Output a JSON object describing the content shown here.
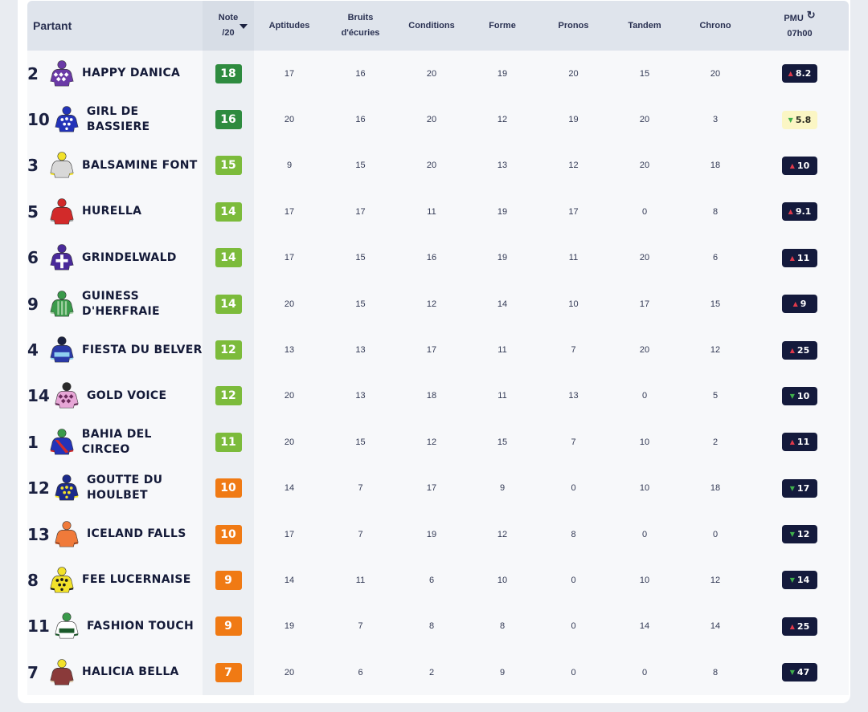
{
  "header": {
    "partant": "Partant",
    "note_line1": "Note",
    "note_line2": "/20",
    "aptitudes": "Aptitudes",
    "bruits_line1": "Bruits",
    "bruits_line2": "d'écuries",
    "conditions": "Conditions",
    "forme": "Forme",
    "pronos": "Pronos",
    "tandem": "Tandem",
    "chrono": "Chrono",
    "pmu_line1": "PMU",
    "pmu_line2": "07h00"
  },
  "colors": {
    "note_dark_green": "#2e8b3f",
    "note_light_green": "#7cbb3b",
    "note_orange": "#f07a14",
    "odds_dark": "#141a3c",
    "odds_light": "#fbf6c4",
    "up_arrow": "#e0394a",
    "down_arrow": "#3fb04b"
  },
  "icons": {
    "sort": "sort-desc-icon",
    "refresh": "refresh-icon",
    "up": "trend-up-icon",
    "down": "trend-down-icon"
  },
  "runners": [
    {
      "num": "2",
      "name": [
        "HAPPY DANICA"
      ],
      "note": "18",
      "note_color": "#2e8b3f",
      "aptitudes": "17",
      "bruits": "16",
      "conditions": "20",
      "forme": "19",
      "pronos": "20",
      "tandem": "15",
      "chrono": "20",
      "pmu": "8.2",
      "trend": "up",
      "odds_style": "dark",
      "silk": {
        "body": "#6a3aa6",
        "accent": "#ffffff",
        "cap": "#6a3aa6",
        "pattern": "diamonds"
      }
    },
    {
      "num": "10",
      "name": [
        "GIRL DE BASSIERE"
      ],
      "note": "16",
      "note_color": "#2e8b3f",
      "aptitudes": "20",
      "bruits": "16",
      "conditions": "20",
      "forme": "12",
      "pronos": "19",
      "tandem": "20",
      "chrono": "3",
      "pmu": "5.8",
      "trend": "down",
      "odds_style": "light",
      "silk": {
        "body": "#2333b8",
        "accent": "#ffffff",
        "cap": "#2333b8",
        "pattern": "spots"
      }
    },
    {
      "num": "3",
      "name": [
        "BALSAMINE FONT"
      ],
      "note": "15",
      "note_color": "#7cbb3b",
      "aptitudes": "9",
      "bruits": "15",
      "conditions": "20",
      "forme": "13",
      "pronos": "12",
      "tandem": "20",
      "chrono": "18",
      "pmu": "10",
      "trend": "up",
      "odds_style": "dark",
      "silk": {
        "body": "#d8d8d8",
        "accent": "#f2e22a",
        "cap": "#f2e22a",
        "pattern": "plain"
      }
    },
    {
      "num": "5",
      "name": [
        "HURELLA"
      ],
      "note": "14",
      "note_color": "#7cbb3b",
      "aptitudes": "17",
      "bruits": "17",
      "conditions": "11",
      "forme": "19",
      "pronos": "17",
      "tandem": "0",
      "chrono": "8",
      "pmu": "9.1",
      "trend": "up",
      "odds_style": "dark",
      "silk": {
        "body": "#d22a2a",
        "accent": "#9a9a9a",
        "cap": "#d22a2a",
        "pattern": "plain"
      }
    },
    {
      "num": "6",
      "name": [
        "GRINDELWALD"
      ],
      "note": "14",
      "note_color": "#7cbb3b",
      "aptitudes": "17",
      "bruits": "15",
      "conditions": "16",
      "forme": "19",
      "pronos": "11",
      "tandem": "20",
      "chrono": "6",
      "pmu": "11",
      "trend": "up",
      "odds_style": "dark",
      "silk": {
        "body": "#4a2a9a",
        "accent": "#ffffff",
        "cap": "#4a2a9a",
        "pattern": "cross"
      }
    },
    {
      "num": "9",
      "name": [
        "GUINESS",
        "D'HERFRAIE"
      ],
      "note": "14",
      "note_color": "#7cbb3b",
      "aptitudes": "20",
      "bruits": "15",
      "conditions": "12",
      "forme": "14",
      "pronos": "10",
      "tandem": "17",
      "chrono": "15",
      "pmu": "9",
      "trend": "up",
      "odds_style": "dark",
      "silk": {
        "body": "#3a9a4a",
        "accent": "#a0d0a0",
        "cap": "#3a9a4a",
        "pattern": "stripes"
      }
    },
    {
      "num": "4",
      "name": [
        "FIESTA DU BELVER"
      ],
      "note": "12",
      "note_color": "#7cbb3b",
      "aptitudes": "13",
      "bruits": "13",
      "conditions": "17",
      "forme": "11",
      "pronos": "7",
      "tandem": "20",
      "chrono": "12",
      "pmu": "25",
      "trend": "up",
      "odds_style": "dark",
      "silk": {
        "body": "#2a3aa8",
        "accent": "#8fd0f0",
        "cap": "#1b2140",
        "pattern": "band"
      }
    },
    {
      "num": "14",
      "name": [
        "GOLD VOICE"
      ],
      "note": "12",
      "note_color": "#7cbb3b",
      "aptitudes": "20",
      "bruits": "13",
      "conditions": "18",
      "forme": "11",
      "pronos": "13",
      "tandem": "0",
      "chrono": "5",
      "pmu": "10",
      "trend": "down",
      "odds_style": "dark",
      "silk": {
        "body": "#e6a6d6",
        "accent": "#6a2a5a",
        "cap": "#2a2a2a",
        "pattern": "diamonds"
      }
    },
    {
      "num": "1",
      "name": [
        "BAHIA DEL CIRCEO"
      ],
      "note": "11",
      "note_color": "#7cbb3b",
      "aptitudes": "20",
      "bruits": "15",
      "conditions": "12",
      "forme": "15",
      "pronos": "7",
      "tandem": "10",
      "chrono": "2",
      "pmu": "11",
      "trend": "up",
      "odds_style": "dark",
      "silk": {
        "body": "#2333b8",
        "accent": "#d22a2a",
        "cap": "#3a9a4a",
        "pattern": "sash"
      }
    },
    {
      "num": "12",
      "name": [
        "GOUTTE DU",
        "HOULBET"
      ],
      "note": "10",
      "note_color": "#f07a14",
      "aptitudes": "14",
      "bruits": "7",
      "conditions": "17",
      "forme": "9",
      "pronos": "0",
      "tandem": "10",
      "chrono": "18",
      "pmu": "17",
      "trend": "down",
      "odds_style": "dark",
      "silk": {
        "body": "#1c2a8a",
        "accent": "#f2e22a",
        "cap": "#1c2a8a",
        "pattern": "spots"
      }
    },
    {
      "num": "13",
      "name": [
        "ICELAND FALLS"
      ],
      "note": "10",
      "note_color": "#f07a14",
      "aptitudes": "17",
      "bruits": "7",
      "conditions": "19",
      "forme": "12",
      "pronos": "8",
      "tandem": "0",
      "chrono": "0",
      "pmu": "12",
      "trend": "down",
      "odds_style": "dark",
      "silk": {
        "body": "#f07a3a",
        "accent": "#b84a1a",
        "cap": "#f07a3a",
        "pattern": "plain"
      }
    },
    {
      "num": "8",
      "name": [
        "FEE LUCERNAISE"
      ],
      "note": "9",
      "note_color": "#f07a14",
      "aptitudes": "14",
      "bruits": "11",
      "conditions": "6",
      "forme": "10",
      "pronos": "0",
      "tandem": "10",
      "chrono": "12",
      "pmu": "14",
      "trend": "down",
      "odds_style": "dark",
      "silk": {
        "body": "#f2e22a",
        "accent": "#1b1b1b",
        "cap": "#f2e22a",
        "pattern": "spots"
      }
    },
    {
      "num": "11",
      "name": [
        "FASHION TOUCH"
      ],
      "note": "9",
      "note_color": "#f07a14",
      "aptitudes": "19",
      "bruits": "7",
      "conditions": "8",
      "forme": "8",
      "pronos": "0",
      "tandem": "14",
      "chrono": "14",
      "pmu": "25",
      "trend": "up",
      "odds_style": "dark",
      "silk": {
        "body": "#ffffff",
        "accent": "#1b5a2a",
        "cap": "#3a9a4a",
        "pattern": "band"
      }
    },
    {
      "num": "7",
      "name": [
        "HALICIA BELLA"
      ],
      "note": "7",
      "note_color": "#f07a14",
      "aptitudes": "20",
      "bruits": "6",
      "conditions": "2",
      "forme": "9",
      "pronos": "0",
      "tandem": "0",
      "chrono": "8",
      "pmu": "47",
      "trend": "down",
      "odds_style": "dark",
      "silk": {
        "body": "#8a3a3a",
        "accent": "#d8c0a0",
        "cap": "#f2e22a",
        "pattern": "plain"
      }
    }
  ]
}
